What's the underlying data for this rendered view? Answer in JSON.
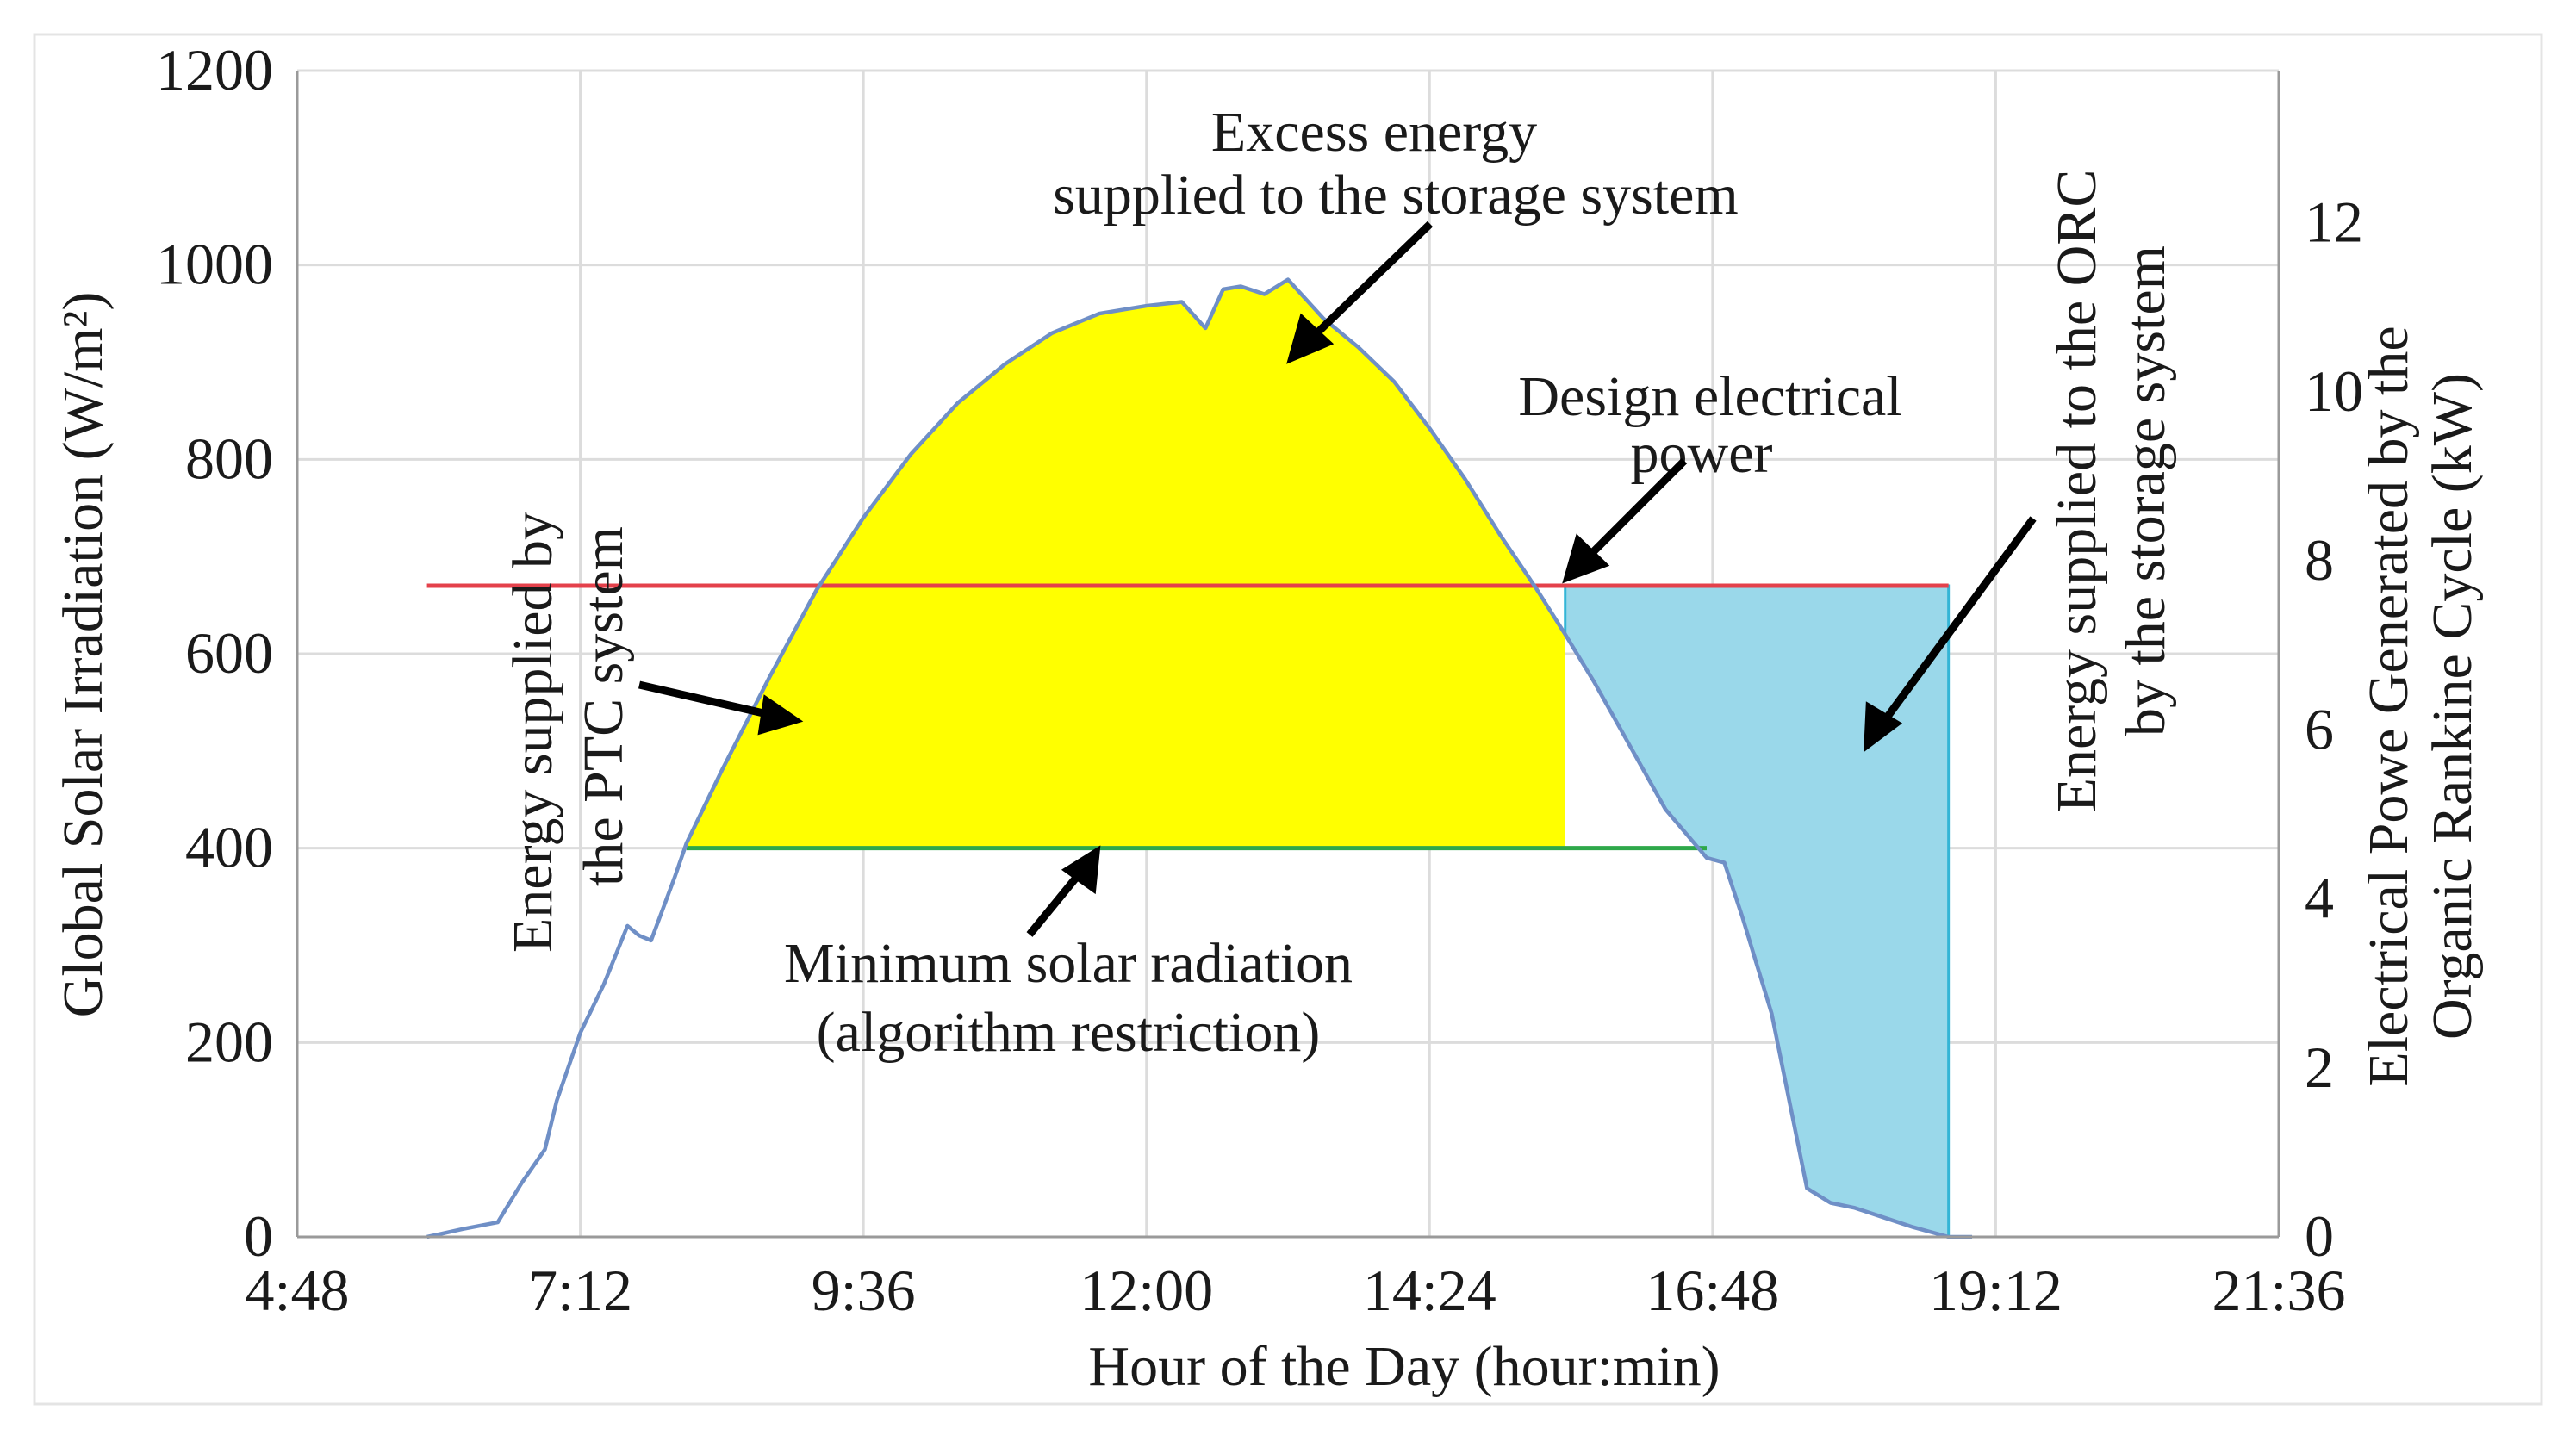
{
  "chart_data": {
    "type": "area",
    "xlabel": "Hour of the Day (hour:min)",
    "ylabel_left": "Global Solar Irradiation (W/m²)",
    "ylabel_right_lines": [
      "Electrical Powe Generated by the",
      "Organic Rankine Cycle (kW)"
    ],
    "x_range_hours": [
      4.8,
      21.6
    ],
    "x_ticks": [
      {
        "hour": 4.8,
        "label": "4:48"
      },
      {
        "hour": 7.2,
        "label": "7:12"
      },
      {
        "hour": 9.6,
        "label": "9:36"
      },
      {
        "hour": 12.0,
        "label": "12:00"
      },
      {
        "hour": 14.4,
        "label": "14:24"
      },
      {
        "hour": 16.8,
        "label": "16:48"
      },
      {
        "hour": 19.2,
        "label": "19:12"
      },
      {
        "hour": 21.6,
        "label": "21:36"
      }
    ],
    "ylim_left": [
      0,
      1200
    ],
    "y_ticks_left": [
      0,
      200,
      400,
      600,
      800,
      1000,
      1200
    ],
    "ylim_right_kw": [
      0,
      13.8
    ],
    "y_ticks_right": [
      0,
      2,
      4,
      6,
      8,
      10,
      12
    ],
    "grid": true,
    "series": [
      {
        "name": "Global solar irradiation",
        "color": "#6f8fc6",
        "points": [
          [
            5.9,
            0
          ],
          [
            6.2,
            8
          ],
          [
            6.5,
            15
          ],
          [
            6.7,
            55
          ],
          [
            6.9,
            90
          ],
          [
            7.0,
            140
          ],
          [
            7.2,
            210
          ],
          [
            7.4,
            260
          ],
          [
            7.6,
            320
          ],
          [
            7.7,
            310
          ],
          [
            7.8,
            305
          ],
          [
            8.0,
            370
          ],
          [
            8.1,
            405
          ],
          [
            8.4,
            480
          ],
          [
            8.8,
            575
          ],
          [
            9.2,
            665
          ],
          [
            9.6,
            740
          ],
          [
            10.0,
            805
          ],
          [
            10.4,
            858
          ],
          [
            10.8,
            898
          ],
          [
            11.2,
            930
          ],
          [
            11.6,
            950
          ],
          [
            12.0,
            958
          ],
          [
            12.3,
            962
          ],
          [
            12.5,
            935
          ],
          [
            12.65,
            975
          ],
          [
            12.8,
            978
          ],
          [
            13.0,
            970
          ],
          [
            13.2,
            985
          ],
          [
            13.5,
            945
          ],
          [
            13.8,
            915
          ],
          [
            14.1,
            880
          ],
          [
            14.4,
            832
          ],
          [
            14.7,
            780
          ],
          [
            15.0,
            722
          ],
          [
            15.3,
            668
          ],
          [
            15.55,
            620
          ],
          [
            15.8,
            570
          ],
          [
            16.1,
            505
          ],
          [
            16.4,
            440
          ],
          [
            16.75,
            390
          ],
          [
            16.9,
            385
          ],
          [
            17.05,
            330
          ],
          [
            17.3,
            230
          ],
          [
            17.45,
            140
          ],
          [
            17.6,
            50
          ],
          [
            17.8,
            35
          ],
          [
            18.0,
            30
          ],
          [
            18.3,
            18
          ],
          [
            18.5,
            10
          ],
          [
            18.8,
            0
          ],
          [
            19.0,
            0
          ]
        ]
      }
    ],
    "reference_lines": [
      {
        "name": "Design electrical power",
        "color": "#e4414b",
        "y": 670,
        "x_from": 5.9,
        "x_to": 18.8
      },
      {
        "name": "Minimum solar radiation",
        "color": "#2ea84a",
        "y": 400,
        "x_from": 8.1,
        "x_to": 16.75
      }
    ],
    "regions": [
      {
        "name": "Energy supplied by the PTC system / excess energy",
        "color": "#ffff00",
        "x_from": 8.1,
        "x_to": 15.55,
        "y_floor": 400
      },
      {
        "name": "Energy supplied to the ORC by the storage system",
        "color": "#9ad8ea",
        "x_from": 15.55,
        "x_to": 18.8,
        "y_top": 670,
        "border": "#34b5d6"
      }
    ],
    "annotations": {
      "excess_energy": [
        "Excess energy",
        "supplied to the storage system"
      ],
      "design_power": [
        "Design electrical",
        "power"
      ],
      "ptc_energy": [
        "Energy supplied by",
        "the PTC system"
      ],
      "minimum_radiation": [
        "Minimum solar radiation",
        "(algorithm restriction)"
      ],
      "orc_storage": [
        "Energy supplied to the ORC",
        "by the storage system"
      ]
    }
  }
}
